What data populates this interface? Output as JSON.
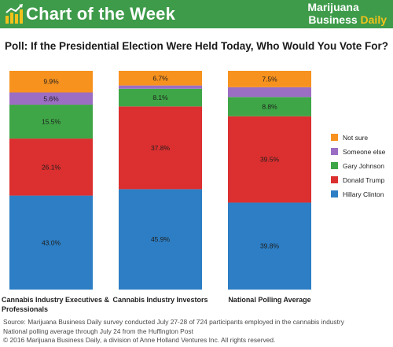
{
  "banner": {
    "title": "Chart of the Week",
    "brand_line1": "Marijuana",
    "brand_line2_a": "Business ",
    "brand_line2_b": "Daily",
    "icon": "bar-chart-trend-icon",
    "colors": {
      "background": "#3e9b4a",
      "accent": "#f2c21b"
    }
  },
  "poll_title": "Poll: If the Presidential Election Were Held Today, Who Would You Vote For?",
  "chart_data": {
    "type": "bar",
    "stacked": true,
    "categories": [
      "Cannabis Industry Executives & Professionals",
      "Cannabis Industry Investors",
      "National Polling Average"
    ],
    "series": [
      {
        "name": "Hillary Clinton",
        "values": [
          43.0,
          45.9,
          39.8
        ],
        "labels": [
          "43.0%",
          "45.9%",
          "39.8%"
        ],
        "color": "#2d7ec4"
      },
      {
        "name": "Donald Trump",
        "values": [
          26.1,
          37.8,
          39.5
        ],
        "labels": [
          "26.1%",
          "37.8%",
          "39.5%"
        ],
        "color": "#dc2f2f"
      },
      {
        "name": "Gary Johnson",
        "values": [
          15.5,
          8.1,
          8.8
        ],
        "labels": [
          "15.5%",
          "8.1%",
          "8.8%"
        ],
        "color": "#3ea646"
      },
      {
        "name": "Someone else",
        "values": [
          5.6,
          1.5,
          4.5
        ],
        "labels": [
          "5.6%",
          "",
          ""
        ],
        "color": "#9b6ec3"
      },
      {
        "name": "Not sure",
        "values": [
          9.9,
          6.7,
          7.5
        ],
        "labels": [
          "9.9%",
          "6.7%",
          "7.5%"
        ],
        "color": "#f7921e"
      }
    ],
    "legend_order": [
      "Not sure",
      "Someone else",
      "Gary Johnson",
      "Donald Trump",
      "Hillary Clinton"
    ],
    "legend_position": "right",
    "ylim": [
      0,
      100
    ],
    "grid": false
  },
  "source": {
    "line1": "Source: Marijuana Business Daily survey conducted July 27-28 of 724 participants employed in the cannabis industry",
    "line2": "National polling average through July 24 from the Huffington Post",
    "line3": "© 2016 Marijuana Business Daily, a division of Anne Holland Ventures Inc. All rights reserved."
  }
}
